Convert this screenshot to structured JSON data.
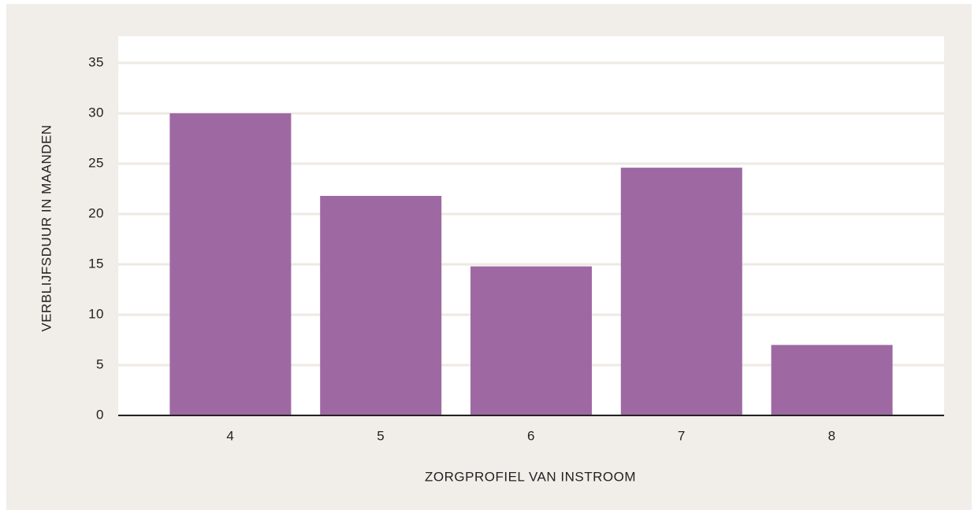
{
  "chart_data": {
    "type": "bar",
    "x_label": "ZORGPROFIEL VAN INSTROOM",
    "y_label": "VERBLIJFSDUUR IN MAANDEN",
    "categories": [
      "4",
      "5",
      "6",
      "7",
      "8"
    ],
    "values": [
      30,
      21.8,
      14.8,
      24.6,
      7
    ],
    "color": "#9e69a3",
    "ylim": [
      0,
      35
    ],
    "yticks": [
      0,
      5,
      10,
      15,
      20,
      25,
      30,
      35
    ],
    "grid": true
  }
}
